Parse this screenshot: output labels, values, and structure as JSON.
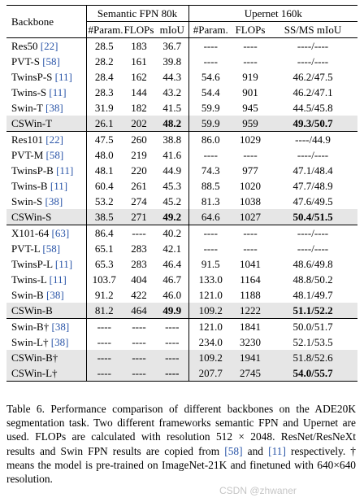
{
  "table": {
    "header": {
      "backbone": "Backbone",
      "group1": "Semantic FPN 80k",
      "group2": "Upernet 160k",
      "cols": [
        "#Param.",
        "FLOPs",
        "mIoU",
        "#Param.",
        "FLOPs",
        "SS/MS mIoU"
      ]
    },
    "blocks": [
      [
        {
          "name": "Res50",
          "ref": "22",
          "vals": [
            "28.5",
            "183",
            "36.7",
            "----",
            "----",
            "----/----"
          ],
          "hl": false
        },
        {
          "name": "PVT-S",
          "ref": "58",
          "vals": [
            "28.2",
            "161",
            "39.8",
            "----",
            "----",
            "----/----"
          ],
          "hl": false
        },
        {
          "name": "TwinsP-S",
          "ref": "11",
          "vals": [
            "28.4",
            "162",
            "44.3",
            "54.6",
            "919",
            "46.2/47.5"
          ],
          "hl": false
        },
        {
          "name": "Twins-S",
          "ref": "11",
          "vals": [
            "28.3",
            "144",
            "43.2",
            "54.4",
            "901",
            "46.2/47.1"
          ],
          "hl": false
        },
        {
          "name": "Swin-T",
          "ref": "38",
          "vals": [
            "31.9",
            "182",
            "41.5",
            "59.9",
            "945",
            "44.5/45.8"
          ],
          "hl": false
        },
        {
          "name": "CSWin-T",
          "ref": "",
          "vals": [
            "26.1",
            "202",
            "48.2",
            "59.9",
            "959",
            "49.3/50.7"
          ],
          "hl": true
        }
      ],
      [
        {
          "name": "Res101",
          "ref": "22",
          "vals": [
            "47.5",
            "260",
            "38.8",
            "86.0",
            "1029",
            "----/44.9"
          ],
          "hl": false
        },
        {
          "name": "PVT-M",
          "ref": "58",
          "vals": [
            "48.0",
            "219",
            "41.6",
            "----",
            "----",
            "----/----"
          ],
          "hl": false
        },
        {
          "name": "TwinsP-B",
          "ref": "11",
          "vals": [
            "48.1",
            "220",
            "44.9",
            "74.3",
            "977",
            "47.1/48.4"
          ],
          "hl": false
        },
        {
          "name": "Twins-B",
          "ref": "11",
          "vals": [
            "60.4",
            "261",
            "45.3",
            "88.5",
            "1020",
            "47.7/48.9"
          ],
          "hl": false
        },
        {
          "name": "Swin-S",
          "ref": "38",
          "vals": [
            "53.2",
            "274",
            "45.2",
            "81.3",
            "1038",
            "47.6/49.5"
          ],
          "hl": false
        },
        {
          "name": "CSWin-S",
          "ref": "",
          "vals": [
            "38.5",
            "271",
            "49.2",
            "64.6",
            "1027",
            "50.4/51.5"
          ],
          "hl": true
        }
      ],
      [
        {
          "name": "X101-64",
          "ref": "63",
          "vals": [
            "86.4",
            "----",
            "40.2",
            "----",
            "----",
            "----/----"
          ],
          "hl": false
        },
        {
          "name": "PVT-L",
          "ref": "58",
          "vals": [
            "65.1",
            "283",
            "42.1",
            "----",
            "----",
            "----/----"
          ],
          "hl": false
        },
        {
          "name": "TwinsP-L",
          "ref": "11",
          "vals": [
            "65.3",
            "283",
            "46.4",
            "91.5",
            "1041",
            "48.6/49.8"
          ],
          "hl": false
        },
        {
          "name": "Twins-L",
          "ref": "11",
          "vals": [
            "103.7",
            "404",
            "46.7",
            "133.0",
            "1164",
            "48.8/50.2"
          ],
          "hl": false
        },
        {
          "name": "Swin-B",
          "ref": "38",
          "vals": [
            "91.2",
            "422",
            "46.0",
            "121.0",
            "1188",
            "48.1/49.7"
          ],
          "hl": false
        },
        {
          "name": "CSWin-B",
          "ref": "",
          "vals": [
            "81.2",
            "464",
            "49.9",
            "109.2",
            "1222",
            "51.1/52.2"
          ],
          "hl": true
        }
      ],
      [
        {
          "name": "Swin-B†",
          "ref": "38",
          "vals": [
            "----",
            "----",
            "----",
            "121.0",
            "1841",
            "50.0/51.7"
          ],
          "hl": false
        },
        {
          "name": "Swin-L†",
          "ref": "38",
          "vals": [
            "----",
            "----",
            "----",
            "234.0",
            "3230",
            "52.1/53.5"
          ],
          "hl": false
        },
        {
          "name": "CSWin-B†",
          "ref": "",
          "vals": [
            "----",
            "----",
            "----",
            "109.2",
            "1941",
            "51.8/52.6"
          ],
          "hl": true
        },
        {
          "name": "CSWin-L†",
          "ref": "",
          "vals": [
            "----",
            "----",
            "----",
            "207.7",
            "2745",
            "54.0/55.7"
          ],
          "hl": true
        }
      ]
    ],
    "bold_cols": [
      2,
      5
    ],
    "bold_rows": [
      "CSWin-T",
      "CSWin-S",
      "CSWin-B",
      "CSWin-L†"
    ]
  },
  "caption": {
    "p1": "Table 6. Performance comparison of different backbones on the ADE20K segmentation task. Two different frameworks semantic FPN and Upernet are used. FLOPs are calculated with resolution",
    "res": "512 × 2048",
    "p2": ". ResNet/ResNeXt results and Swin FPN results are copied from",
    "ref_a": "[58]",
    "p3": "and",
    "ref_b": "[11]",
    "p4": "respectively. † means the model is pre-trained on ImageNet-21K and finetuned with 640×640 resolution."
  },
  "watermark": "CSDN @zhwaner"
}
